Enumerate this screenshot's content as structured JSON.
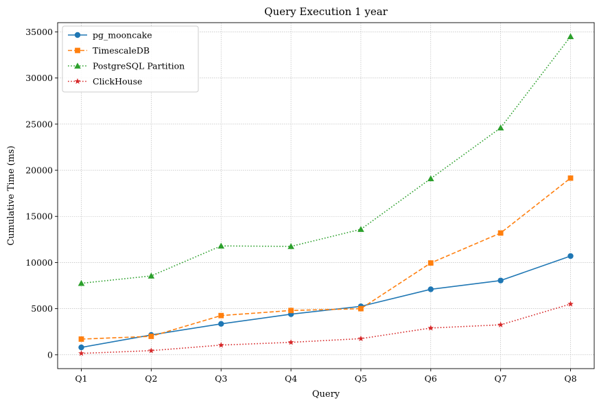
{
  "chart_data": {
    "type": "line",
    "title": "Query Execution 1 year",
    "xlabel": "Query",
    "ylabel": "Cumulative Time (ms)",
    "categories": [
      "Q1",
      "Q2",
      "Q3",
      "Q4",
      "Q5",
      "Q6",
      "Q7",
      "Q8"
    ],
    "ylim": [
      -1500,
      36000
    ],
    "yticks": [
      0,
      5000,
      10000,
      15000,
      20000,
      25000,
      30000,
      35000
    ],
    "grid": true,
    "legend_position": "top-left",
    "series": [
      {
        "name": "pg_mooncake",
        "color": "#1f77b4",
        "marker": "circle",
        "linestyle": "solid",
        "values": [
          800,
          2150,
          3350,
          4400,
          5250,
          7100,
          8050,
          10700
        ]
      },
      {
        "name": "TimescaleDB",
        "color": "#ff7f0e",
        "marker": "square",
        "linestyle": "dashed",
        "values": [
          1700,
          2000,
          4250,
          4800,
          5000,
          9950,
          13200,
          19150
        ]
      },
      {
        "name": "PostgreSQL Partition",
        "color": "#2ca02c",
        "marker": "triangle",
        "linestyle": "dotted",
        "values": [
          7750,
          8550,
          11800,
          11750,
          13600,
          19100,
          24600,
          34500
        ]
      },
      {
        "name": "ClickHouse",
        "color": "#d62728",
        "marker": "star",
        "linestyle": "dotted",
        "values": [
          150,
          450,
          1050,
          1350,
          1750,
          2900,
          3250,
          5500
        ]
      }
    ]
  }
}
